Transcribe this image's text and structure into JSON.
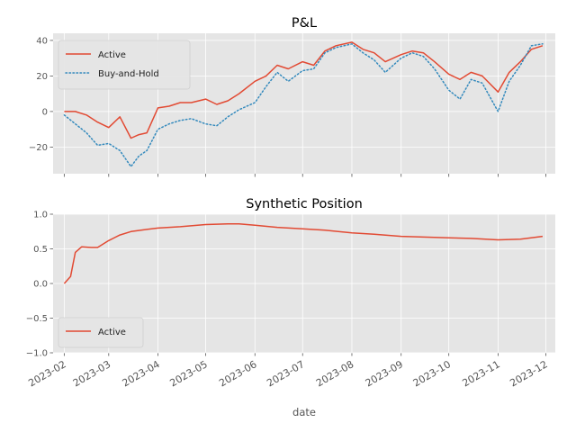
{
  "chart_data": [
    {
      "type": "line",
      "title": "P&L",
      "xlabel": "",
      "ylabel": "",
      "ylim": [
        -35,
        44
      ],
      "yticks": [
        "−20",
        "0",
        "20",
        "40"
      ],
      "ytick_values": [
        -20,
        0,
        20,
        40
      ],
      "grid": true,
      "legend_position": "upper-left",
      "series": [
        {
          "name": "Active",
          "color": "#E24A33",
          "style": "solid",
          "x": [
            "2023-02-01",
            "2023-02-08",
            "2023-02-15",
            "2023-02-22",
            "2023-03-01",
            "2023-03-08",
            "2023-03-15",
            "2023-03-20",
            "2023-03-25",
            "2023-04-01",
            "2023-04-08",
            "2023-04-15",
            "2023-04-22",
            "2023-05-01",
            "2023-05-08",
            "2023-05-15",
            "2023-05-22",
            "2023-06-01",
            "2023-06-08",
            "2023-06-15",
            "2023-06-22",
            "2023-07-01",
            "2023-07-08",
            "2023-07-15",
            "2023-07-22",
            "2023-08-01",
            "2023-08-08",
            "2023-08-15",
            "2023-08-22",
            "2023-09-01",
            "2023-09-08",
            "2023-09-15",
            "2023-09-22",
            "2023-10-01",
            "2023-10-08",
            "2023-10-15",
            "2023-10-22",
            "2023-11-01",
            "2023-11-08",
            "2023-11-15",
            "2023-11-22",
            "2023-11-29"
          ],
          "y": [
            0,
            0,
            -2,
            -6,
            -9,
            -3,
            -15,
            -13,
            -12,
            2,
            3,
            5,
            5,
            7,
            4,
            6,
            10,
            17,
            20,
            26,
            24,
            28,
            26,
            34,
            37,
            39,
            35,
            33,
            28,
            32,
            34,
            33,
            28,
            21,
            18,
            22,
            20,
            11,
            22,
            28,
            35,
            37
          ]
        },
        {
          "name": "Buy-and-Hold",
          "color": "#348ABD",
          "style": "dotted",
          "x": [
            "2023-02-01",
            "2023-02-08",
            "2023-02-15",
            "2023-02-22",
            "2023-03-01",
            "2023-03-08",
            "2023-03-15",
            "2023-03-20",
            "2023-03-25",
            "2023-04-01",
            "2023-04-08",
            "2023-04-15",
            "2023-04-22",
            "2023-05-01",
            "2023-05-08",
            "2023-05-15",
            "2023-05-22",
            "2023-06-01",
            "2023-06-08",
            "2023-06-15",
            "2023-06-22",
            "2023-07-01",
            "2023-07-08",
            "2023-07-15",
            "2023-07-22",
            "2023-08-01",
            "2023-08-08",
            "2023-08-15",
            "2023-08-22",
            "2023-09-01",
            "2023-09-08",
            "2023-09-15",
            "2023-09-22",
            "2023-10-01",
            "2023-10-08",
            "2023-10-15",
            "2023-10-22",
            "2023-11-01",
            "2023-11-08",
            "2023-11-15",
            "2023-11-22",
            "2023-11-29"
          ],
          "y": [
            -2,
            -7,
            -12,
            -19,
            -18,
            -22,
            -31,
            -25,
            -22,
            -10,
            -7,
            -5,
            -4,
            -7,
            -8,
            -3,
            1,
            5,
            14,
            22,
            17,
            23,
            24,
            33,
            36,
            38,
            33,
            29,
            22,
            30,
            33,
            31,
            24,
            12,
            7,
            18,
            16,
            0,
            17,
            26,
            37,
            38
          ]
        }
      ]
    },
    {
      "type": "line",
      "title": "Synthetic Position",
      "xlabel": "date",
      "ylabel": "",
      "ylim": [
        -1.0,
        1.0
      ],
      "yticks": [
        "−1.0",
        "−0.5",
        "0.0",
        "0.5",
        "1.0"
      ],
      "ytick_values": [
        -1.0,
        -0.5,
        0.0,
        0.5,
        1.0
      ],
      "grid": true,
      "legend_position": "lower-left",
      "series": [
        {
          "name": "Active",
          "color": "#E24A33",
          "style": "solid",
          "x": [
            "2023-02-01",
            "2023-02-05",
            "2023-02-08",
            "2023-02-12",
            "2023-02-18",
            "2023-02-22",
            "2023-03-01",
            "2023-03-08",
            "2023-03-15",
            "2023-03-25",
            "2023-04-01",
            "2023-04-15",
            "2023-05-01",
            "2023-05-15",
            "2023-05-22",
            "2023-06-01",
            "2023-06-15",
            "2023-07-01",
            "2023-07-15",
            "2023-08-01",
            "2023-08-15",
            "2023-09-01",
            "2023-09-15",
            "2023-10-01",
            "2023-10-15",
            "2023-11-01",
            "2023-11-15",
            "2023-11-29"
          ],
          "y": [
            0.0,
            0.1,
            0.45,
            0.53,
            0.52,
            0.52,
            0.62,
            0.7,
            0.75,
            0.78,
            0.8,
            0.82,
            0.85,
            0.86,
            0.86,
            0.84,
            0.81,
            0.79,
            0.77,
            0.73,
            0.71,
            0.68,
            0.67,
            0.66,
            0.65,
            0.63,
            0.64,
            0.68
          ]
        }
      ]
    }
  ],
  "x_axis": {
    "tick_labels": [
      "2023-02",
      "2023-03",
      "2023-04",
      "2023-05",
      "2023-06",
      "2023-07",
      "2023-08",
      "2023-09",
      "2023-10",
      "2023-11",
      "2023-12"
    ],
    "tick_values": [
      "2023-02-01",
      "2023-03-01",
      "2023-04-01",
      "2023-05-01",
      "2023-06-01",
      "2023-07-01",
      "2023-08-01",
      "2023-09-01",
      "2023-10-01",
      "2023-11-01",
      "2023-12-01"
    ],
    "range": [
      "2023-01-25",
      "2023-12-07"
    ]
  }
}
